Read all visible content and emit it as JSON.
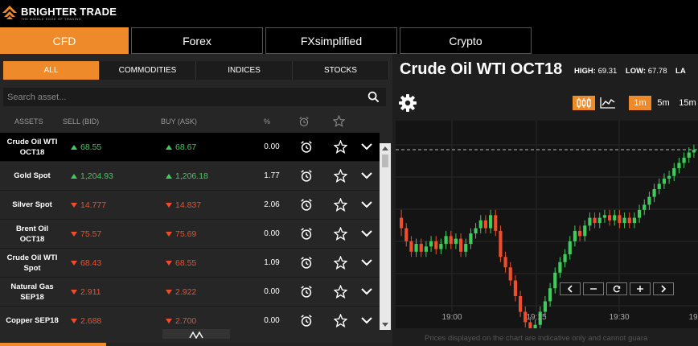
{
  "brand": {
    "name": "BRIGHTER TRADE",
    "tagline": "THE MIDDLE EDGE OF TRADING"
  },
  "main_tabs": [
    "CFD",
    "Forex",
    "FXsimplified",
    "Crypto"
  ],
  "sub_tabs": [
    "ALL",
    "COMMODITIES",
    "INDICES",
    "STOCKS"
  ],
  "search": {
    "placeholder": "Search asset..."
  },
  "columns": {
    "assets": "ASSETS",
    "sell": "SELL (BID)",
    "buy": "BUY (ASK)",
    "pct": "%"
  },
  "assets": [
    {
      "name": "Crude Oil WTI OCT18",
      "sell": "68.55",
      "buy": "68.67",
      "pct": "0.00",
      "dir": "up"
    },
    {
      "name": "Gold Spot",
      "sell": "1,204.93",
      "buy": "1,206.18",
      "pct": "1.77",
      "dir": "up"
    },
    {
      "name": "Silver Spot",
      "sell": "14.777",
      "buy": "14.837",
      "pct": "2.06",
      "dir": "down"
    },
    {
      "name": "Brent Oil OCT18",
      "sell": "75.57",
      "buy": "75.69",
      "pct": "0.00",
      "dir": "down"
    },
    {
      "name": "Crude Oil WTI Spot",
      "sell": "68.43",
      "buy": "68.55",
      "pct": "1.09",
      "dir": "down"
    },
    {
      "name": "Natural Gas SEP18",
      "sell": "2.911",
      "buy": "2.922",
      "pct": "0.00",
      "dir": "down"
    },
    {
      "name": "Copper SEP18",
      "sell": "2.688",
      "buy": "2.700",
      "pct": "0.00",
      "dir": "down"
    }
  ],
  "chart_panel": {
    "title": "Crude Oil WTI OCT18",
    "high_label": "HIGH:",
    "high": "69.31",
    "low_label": "LOW:",
    "low": "67.78",
    "last_label": "LA",
    "timeframes": [
      "1m",
      "5m",
      "15m"
    ],
    "active_timeframe": "1m",
    "time_labels": [
      "19:00",
      "19:15",
      "19:30",
      "19"
    ],
    "disclaimer": "Prices displayed on the chart are indicative only and cannot guara"
  },
  "colors": {
    "accent": "#ee8a2a",
    "up": "#3fcc5a",
    "down": "#f04e2a"
  },
  "candles": [
    [
      0.62,
      0.7,
      0.56,
      0.76
    ],
    [
      0.7,
      0.8,
      0.66,
      0.84
    ],
    [
      0.8,
      0.88,
      0.76,
      0.92
    ],
    [
      0.88,
      0.82,
      0.78,
      0.92
    ],
    [
      0.82,
      0.88,
      0.78,
      0.92
    ],
    [
      0.88,
      0.84,
      0.8,
      0.92
    ],
    [
      0.84,
      0.8,
      0.76,
      0.88
    ],
    [
      0.8,
      0.86,
      0.76,
      0.9
    ],
    [
      0.86,
      0.82,
      0.78,
      0.9
    ],
    [
      0.82,
      0.76,
      0.72,
      0.86
    ],
    [
      0.76,
      0.82,
      0.72,
      0.86
    ],
    [
      0.82,
      0.78,
      0.74,
      0.86
    ],
    [
      0.78,
      0.88,
      0.74,
      0.92
    ],
    [
      0.88,
      0.82,
      0.78,
      0.92
    ],
    [
      0.82,
      0.74,
      0.7,
      0.86
    ],
    [
      0.74,
      0.7,
      0.66,
      0.78
    ],
    [
      0.7,
      0.64,
      0.6,
      0.74
    ],
    [
      0.64,
      0.7,
      0.6,
      0.74
    ],
    [
      0.7,
      0.6,
      0.56,
      0.74
    ],
    [
      0.6,
      0.72,
      0.56,
      0.76
    ],
    [
      0.72,
      0.92,
      0.68,
      0.96
    ],
    [
      0.92,
      1.0,
      0.88,
      1.04
    ],
    [
      1.0,
      1.1,
      0.96,
      1.14
    ],
    [
      1.1,
      1.22,
      1.06,
      1.26
    ],
    [
      1.22,
      1.34,
      1.18,
      1.38
    ],
    [
      1.34,
      1.42,
      1.3,
      1.46
    ],
    [
      1.42,
      1.48,
      1.38,
      1.52
    ],
    [
      1.48,
      1.44,
      1.4,
      1.52
    ],
    [
      1.44,
      1.34,
      1.3,
      1.48
    ],
    [
      1.34,
      1.26,
      1.22,
      1.38
    ],
    [
      1.26,
      1.16,
      1.12,
      1.3
    ],
    [
      1.16,
      1.04,
      1.0,
      1.2
    ],
    [
      1.04,
      0.96,
      0.92,
      1.08
    ],
    [
      0.96,
      0.9,
      0.86,
      1.0
    ],
    [
      0.9,
      0.8,
      0.76,
      0.94
    ],
    [
      0.8,
      0.72,
      0.68,
      0.84
    ],
    [
      0.72,
      0.76,
      0.68,
      0.8
    ],
    [
      0.76,
      0.68,
      0.64,
      0.8
    ],
    [
      0.68,
      0.62,
      0.58,
      0.72
    ],
    [
      0.62,
      0.66,
      0.58,
      0.7
    ],
    [
      0.66,
      0.62,
      0.58,
      0.7
    ],
    [
      0.62,
      0.6,
      0.56,
      0.66
    ],
    [
      0.6,
      0.64,
      0.56,
      0.68
    ],
    [
      0.64,
      0.6,
      0.56,
      0.68
    ],
    [
      0.6,
      0.66,
      0.56,
      0.7
    ],
    [
      0.66,
      0.62,
      0.58,
      0.7
    ],
    [
      0.62,
      0.66,
      0.58,
      0.7
    ],
    [
      0.66,
      0.62,
      0.58,
      0.7
    ],
    [
      0.62,
      0.56,
      0.52,
      0.66
    ],
    [
      0.56,
      0.52,
      0.48,
      0.6
    ],
    [
      0.52,
      0.46,
      0.42,
      0.56
    ],
    [
      0.46,
      0.4,
      0.36,
      0.5
    ],
    [
      0.4,
      0.36,
      0.32,
      0.44
    ],
    [
      0.36,
      0.32,
      0.28,
      0.4
    ],
    [
      0.32,
      0.3,
      0.26,
      0.36
    ],
    [
      0.3,
      0.24,
      0.2,
      0.34
    ],
    [
      0.24,
      0.2,
      0.16,
      0.28
    ],
    [
      0.2,
      0.16,
      0.12,
      0.24
    ],
    [
      0.16,
      0.12,
      0.08,
      0.2
    ],
    [
      0.12,
      0.1,
      0.06,
      0.16
    ]
  ]
}
